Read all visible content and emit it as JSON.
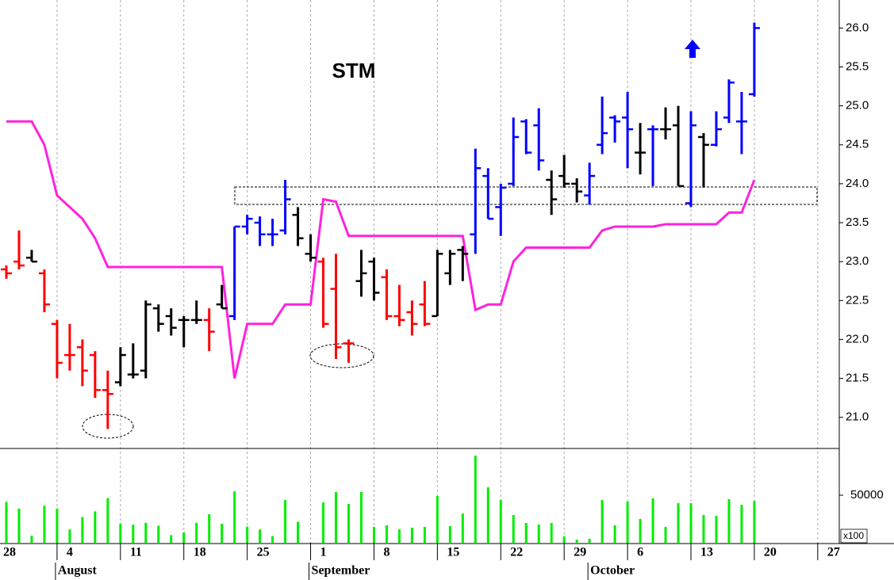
{
  "chart_data": {
    "type": "ohlc",
    "title": "STM",
    "xlim": [
      -0.5,
      65.7
    ],
    "xticks": [
      {
        "value": -1,
        "label": "28"
      },
      {
        "value": 4,
        "label": "4"
      },
      {
        "value": 9,
        "label": "11"
      },
      {
        "value": 14,
        "label": "18"
      },
      {
        "value": 19,
        "label": "25"
      },
      {
        "value": 24,
        "label": "1"
      },
      {
        "value": 29,
        "label": "8"
      },
      {
        "value": 34,
        "label": "15"
      },
      {
        "value": 39,
        "label": "22"
      },
      {
        "value": 44,
        "label": "29"
      },
      {
        "value": 49,
        "label": "6"
      },
      {
        "value": 54,
        "label": "13"
      },
      {
        "value": 59,
        "label": "20"
      },
      {
        "value": 64,
        "label": "27"
      }
    ],
    "month_ticks": [
      {
        "value": 4,
        "label": "August"
      },
      {
        "value": 24,
        "label": "September"
      },
      {
        "value": 46,
        "label": "October"
      }
    ],
    "ylim": [
      20.61,
      26.36
    ],
    "yticks": [
      {
        "value": 21.0,
        "label": "21.0"
      },
      {
        "value": 21.5,
        "label": "21.5"
      },
      {
        "value": 22.0,
        "label": "22.0"
      },
      {
        "value": 22.5,
        "label": "22.5"
      },
      {
        "value": 23.0,
        "label": "23.0"
      },
      {
        "value": 23.5,
        "label": "23.5"
      },
      {
        "value": 24.0,
        "label": "24.0"
      },
      {
        "value": 24.5,
        "label": "24.5"
      },
      {
        "value": 25.0,
        "label": "25.0"
      },
      {
        "value": 25.5,
        "label": "25.5"
      },
      {
        "value": 26.0,
        "label": "26.0"
      }
    ],
    "high": [
      22.95,
      23.4,
      23.15,
      22.9,
      22.25,
      22.2,
      22.0,
      21.85,
      21.6,
      21.9,
      21.95,
      22.5,
      22.45,
      22.4,
      22.3,
      22.5,
      22.4,
      22.7,
      23.45,
      23.6,
      23.58,
      23.55,
      24.05,
      23.7,
      23.35,
      23.05,
      23.1,
      22.0,
      23.15,
      23.05,
      22.9,
      22.7,
      22.5,
      22.75,
      23.15,
      23.15,
      23.2,
      24.45,
      24.2,
      24.0,
      24.85,
      24.83,
      24.97,
      24.17,
      24.37,
      24.07,
      24.27,
      25.12,
      24.88,
      25.18,
      24.78,
      24.75,
      24.98,
      25.0,
      24.93,
      24.65,
      24.93,
      25.34,
      25.18,
      26.07
    ],
    "low": [
      22.78,
      22.9,
      23.0,
      22.35,
      21.5,
      21.6,
      21.4,
      21.25,
      20.85,
      21.4,
      21.5,
      21.5,
      22.1,
      22.05,
      21.9,
      22.2,
      21.85,
      22.4,
      22.25,
      23.35,
      23.2,
      23.2,
      23.35,
      23.2,
      23.0,
      22.15,
      21.75,
      21.7,
      22.55,
      22.5,
      22.25,
      22.17,
      22.05,
      22.17,
      22.3,
      22.7,
      22.75,
      23.1,
      23.55,
      23.33,
      23.97,
      24.38,
      24.17,
      23.6,
      23.95,
      23.76,
      23.73,
      24.38,
      24.53,
      24.2,
      24.12,
      23.97,
      24.57,
      23.97,
      23.7,
      23.95,
      24.48,
      24.78,
      24.38,
      25.12
    ],
    "open": [
      22.9,
      23.0,
      23.05,
      22.85,
      22.2,
      21.8,
      21.9,
      21.8,
      21.35,
      21.45,
      21.55,
      21.6,
      22.4,
      22.3,
      22.25,
      22.25,
      22.25,
      22.45,
      22.3,
      23.45,
      23.5,
      23.35,
      23.4,
      23.6,
      23.1,
      23.0,
      22.65,
      21.95,
      22.75,
      23.0,
      22.8,
      22.3,
      22.35,
      22.45,
      22.3,
      22.85,
      23.15,
      23.35,
      24.1,
      23.7,
      24.0,
      24.8,
      24.75,
      24.05,
      24.1,
      24.0,
      23.85,
      24.5,
      24.85,
      24.85,
      24.4,
      24.7,
      24.7,
      24.75,
      23.75,
      24.6,
      24.5,
      24.85,
      24.8,
      25.15
    ],
    "close": [
      22.85,
      22.95,
      23.0,
      22.45,
      21.7,
      21.8,
      21.6,
      21.35,
      21.3,
      21.8,
      21.55,
      22.45,
      22.2,
      22.15,
      22.25,
      22.25,
      22.1,
      22.4,
      23.45,
      23.55,
      23.35,
      23.35,
      23.8,
      23.3,
      23.05,
      22.2,
      21.9,
      21.95,
      22.85,
      22.6,
      22.3,
      22.25,
      22.2,
      22.2,
      23.1,
      23.1,
      23.1,
      24.2,
      23.55,
      23.95,
      24.6,
      24.4,
      24.3,
      23.8,
      24.0,
      23.9,
      24.1,
      24.65,
      24.8,
      24.7,
      24.4,
      24.7,
      24.7,
      23.97,
      24.75,
      24.5,
      24.7,
      25.3,
      24.8,
      26.0
    ],
    "colors": [
      "#ff0000",
      "#ff0000",
      "#000000",
      "#ff0000",
      "#ff0000",
      "#ff0000",
      "#ff0000",
      "#ff0000",
      "#ff0000",
      "#000000",
      "#000000",
      "#000000",
      "#000000",
      "#000000",
      "#000000",
      "#000000",
      "#ff0000",
      "#000000",
      "#0000ff",
      "#0000ff",
      "#0000ff",
      "#0000ff",
      "#0000ff",
      "#000000",
      "#000000",
      "#ff0000",
      "#ff0000",
      "#ff0000",
      "#000000",
      "#000000",
      "#ff0000",
      "#ff0000",
      "#ff0000",
      "#ff0000",
      "#000000",
      "#000000",
      "#000000",
      "#0000ff",
      "#0000ff",
      "#0000ff",
      "#0000ff",
      "#0000ff",
      "#0000ff",
      "#000000",
      "#000000",
      "#000000",
      "#0000ff",
      "#0000ff",
      "#0000ff",
      "#0000ff",
      "#000000",
      "#0000ff",
      "#000000",
      "#000000",
      "#0000ff",
      "#000000",
      "#0000ff",
      "#0000ff",
      "#0000ff",
      "#0000ff"
    ],
    "stop_line": {
      "color": "#ff22dd",
      "values": [
        24.8,
        24.8,
        24.8,
        24.5,
        23.85,
        23.7,
        23.55,
        23.3,
        22.93,
        22.93,
        22.93,
        22.93,
        22.93,
        22.93,
        22.93,
        22.93,
        22.93,
        22.93,
        21.5,
        22.2,
        22.2,
        22.2,
        22.45,
        22.45,
        22.45,
        23.8,
        23.77,
        23.33,
        23.33,
        23.33,
        23.33,
        23.33,
        23.33,
        23.33,
        23.33,
        23.33,
        23.33,
        22.38,
        22.45,
        22.45,
        23.0,
        23.18,
        23.18,
        23.18,
        23.18,
        23.18,
        23.18,
        23.4,
        23.45,
        23.45,
        23.45,
        23.45,
        23.48,
        23.48,
        23.48,
        23.48,
        23.48,
        23.63,
        23.63,
        24.05
      ]
    },
    "volume": {
      "color": "#00ee00",
      "unit_label": "x100",
      "ylim": [
        0,
        98300
      ],
      "yticks": [
        50000
      ],
      "values": [
        43000,
        36000,
        7500,
        39000,
        36000,
        14000,
        27000,
        33000,
        47000,
        20000,
        19000,
        21000,
        18000,
        8000,
        11000,
        21000,
        30000,
        20000,
        54000,
        17000,
        14000,
        7000,
        45000,
        22000,
        null,
        42500,
        53300,
        40800,
        53300,
        16700,
        18300,
        14200,
        15800,
        16700,
        49100,
        17500,
        30800,
        91600,
        58300,
        45000,
        29200,
        20800,
        19200,
        20800,
        6700,
        3300,
        4200,
        45000,
        18300,
        43300,
        25000,
        46600,
        16700,
        41600,
        41600,
        29200,
        28300,
        45800,
        40000,
        44100
      ]
    }
  }
}
